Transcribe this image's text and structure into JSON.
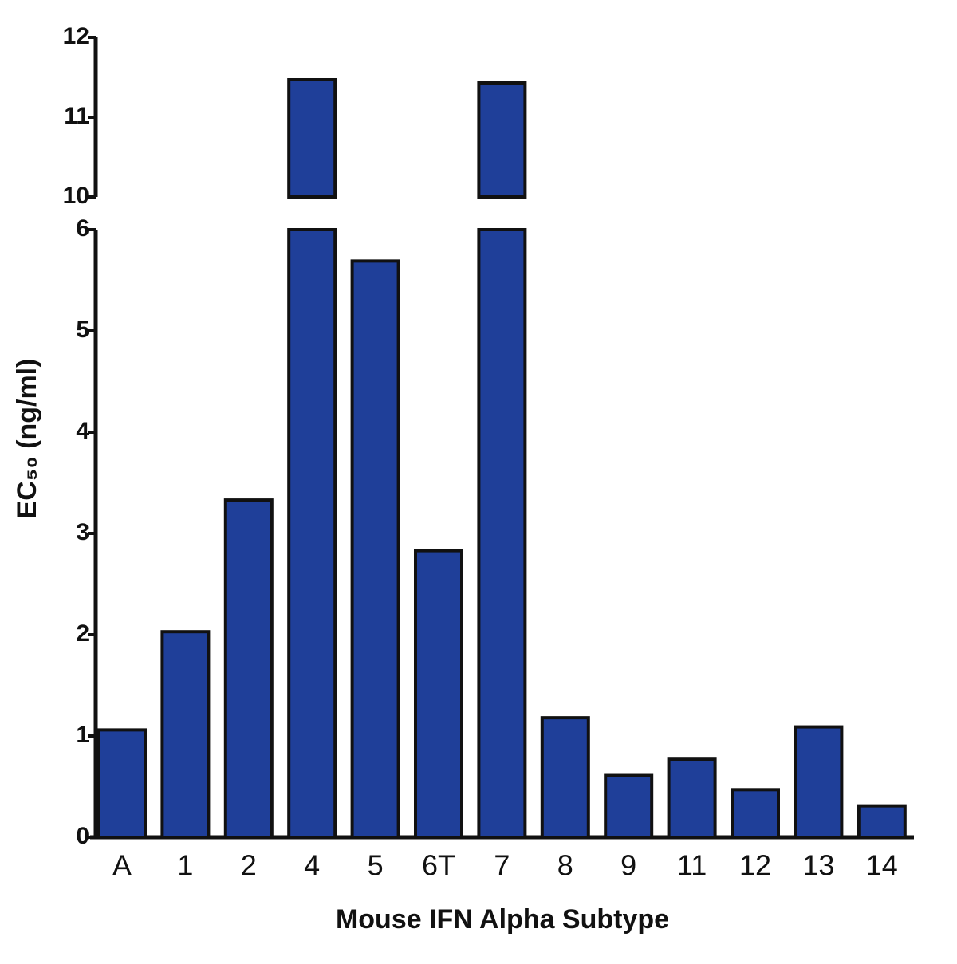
{
  "chart_data": {
    "type": "bar",
    "xlabel": "Mouse IFN Alpha Subtype",
    "ylabel": "EC₅₀ (ng/ml)",
    "categories": [
      "A",
      "1",
      "2",
      "4",
      "5",
      "6T",
      "7",
      "8",
      "9",
      "11",
      "12",
      "13",
      "14"
    ],
    "values": [
      1.06,
      2.03,
      3.33,
      11.47,
      5.69,
      2.83,
      11.43,
      1.18,
      0.61,
      0.77,
      0.47,
      1.09,
      0.31
    ],
    "color": "#1f3f99",
    "ylim": [
      0,
      12
    ],
    "ybreak": [
      6,
      10
    ],
    "yticks": [
      0,
      1,
      2,
      3,
      4,
      5,
      6,
      10,
      11,
      12
    ],
    "grid": false
  }
}
